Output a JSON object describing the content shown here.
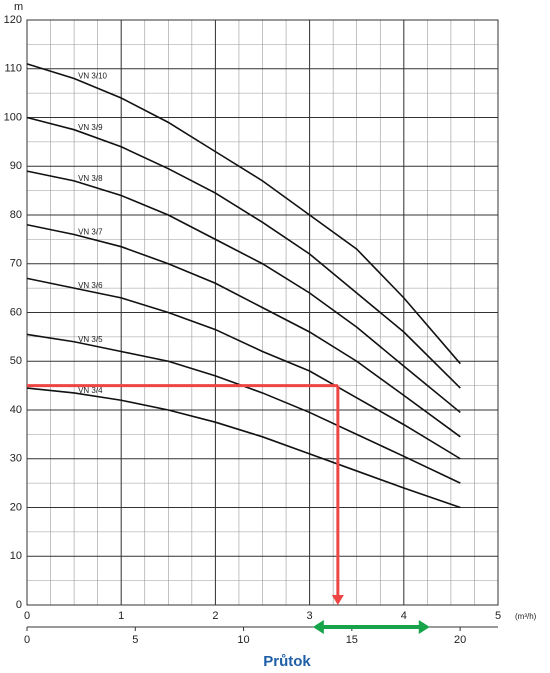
{
  "chart_data": {
    "type": "line",
    "title": "Průtok",
    "y_label": "m",
    "x_label": "(m³/h)",
    "x": [
      0,
      0.5,
      1,
      1.5,
      2,
      2.5,
      3,
      3.5,
      4,
      4.6
    ],
    "series": [
      {
        "name": "VN 3/10",
        "color": "#111111",
        "values": [
          111,
          108,
          104,
          99,
          93,
          87,
          80,
          73,
          63,
          49.5
        ]
      },
      {
        "name": "VN 3/9",
        "color": "#111111",
        "values": [
          100,
          97.5,
          94,
          89.5,
          84.5,
          78.5,
          72,
          64,
          56,
          44.5
        ]
      },
      {
        "name": "VN 3/8",
        "color": "#111111",
        "values": [
          89,
          87,
          84,
          80,
          75,
          70,
          64,
          57,
          49,
          39.5
        ]
      },
      {
        "name": "VN 3/7",
        "color": "#111111",
        "values": [
          78,
          76,
          73.5,
          70,
          66,
          61,
          56,
          50,
          43,
          34.5
        ]
      },
      {
        "name": "VN 3/6",
        "color": "#111111",
        "values": [
          67,
          65,
          63,
          60,
          56.5,
          52,
          48,
          42.5,
          37,
          30
        ]
      },
      {
        "name": "VN 3/5",
        "color": "#111111",
        "values": [
          55.5,
          54,
          52,
          50,
          47,
          43.5,
          39.5,
          35,
          30.5,
          25
        ]
      },
      {
        "name": "VN 3/4",
        "color": "#111111",
        "values": [
          44.5,
          43.5,
          42,
          40,
          37.5,
          34.5,
          31,
          27.5,
          24,
          20
        ]
      }
    ],
    "xlim": [
      0,
      5
    ],
    "xticks": [
      0,
      1,
      2,
      3,
      4,
      5
    ],
    "ylim": [
      0,
      120
    ],
    "yticks": [
      0,
      10,
      20,
      30,
      40,
      50,
      60,
      70,
      80,
      90,
      100,
      110,
      120
    ],
    "x2lim": [
      0,
      21.75
    ],
    "x2ticks": [
      0,
      5,
      10,
      15,
      20
    ],
    "minor_grid": {
      "x": 0.25,
      "y": 5
    },
    "grid": true,
    "operating_point": {
      "flow": 3.3,
      "head": 45,
      "color": "#ee4444"
    },
    "flow_range": {
      "from": 13.2,
      "to": 18.6,
      "color": "#16a34a"
    }
  }
}
